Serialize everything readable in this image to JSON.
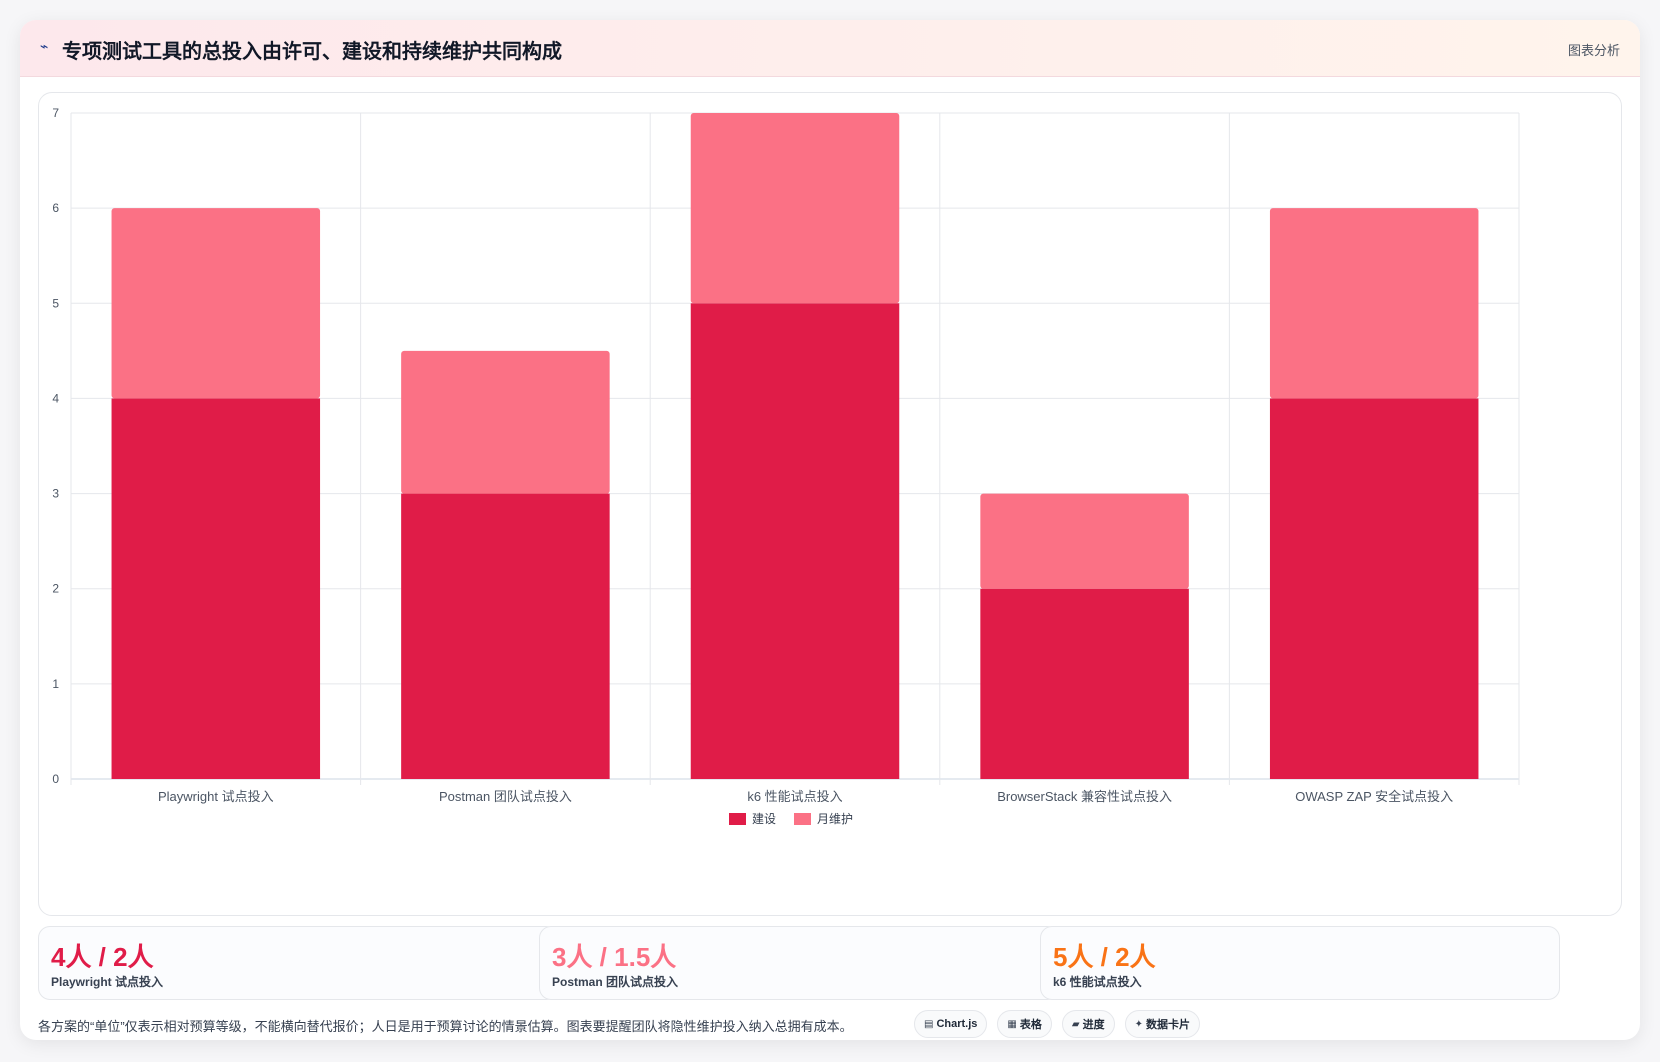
{
  "header": {
    "icon": "chart-icon",
    "title": "专项测试工具的总投入由许可、建设和持续维护共同构成",
    "right_label": "图表分析"
  },
  "colors": {
    "build": "#e01c48",
    "maintain": "#fb7185",
    "stat1": "#e01c48",
    "stat2": "#fb7185",
    "stat3": "#f97316"
  },
  "chart_data": {
    "type": "bar",
    "stacked": true,
    "categories": [
      "Playwright 试点投入",
      "Postman 团队试点投入",
      "k6 性能试点投入",
      "BrowserStack 兼容性试点投入",
      "OWASP ZAP 安全试点投入"
    ],
    "series": [
      {
        "name": "建设",
        "values": [
          4,
          3,
          5,
          2,
          4
        ]
      },
      {
        "name": "月维护",
        "values": [
          2,
          1.5,
          2,
          1,
          2
        ]
      }
    ],
    "ylim": [
      0,
      7
    ],
    "yticks": [
      "0",
      "1",
      "2",
      "3",
      "4",
      "5",
      "6",
      "7"
    ],
    "grid": true,
    "legend_position": "bottom"
  },
  "stats": [
    {
      "value": "4人 / 2人",
      "label": "Playwright 试点投入"
    },
    {
      "value": "3人 / 1.5人",
      "label": "Postman 团队试点投入"
    },
    {
      "value": "5人 / 2人",
      "label": "k6 性能试点投入"
    }
  ],
  "footnote": "各方案的“单位”仅表示相对预算等级，不能横向替代报价；人日是用于预算讨论的情景估算。图表要提醒团队将隐性维护投入纳入总拥有成本。",
  "chips": [
    {
      "icon": "chart-icon",
      "glyph": "▤",
      "label": "Chart.js"
    },
    {
      "icon": "table-icon",
      "glyph": "▦",
      "label": "表格"
    },
    {
      "icon": "progress-icon",
      "glyph": "▰",
      "label": "进度"
    },
    {
      "icon": "card-icon",
      "glyph": "✦",
      "label": "数据卡片"
    }
  ]
}
